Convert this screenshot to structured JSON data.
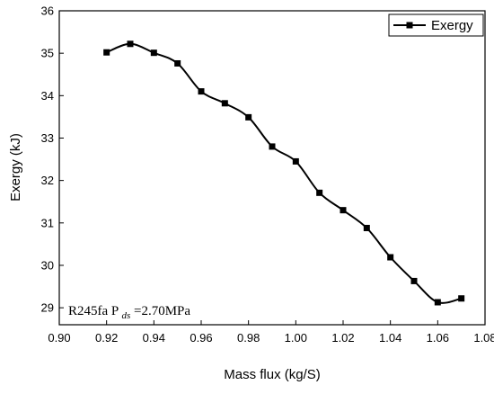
{
  "chart_data": {
    "type": "line",
    "xlabel": "Mass flux (kg/S)",
    "ylabel": "Exergy (kJ)",
    "xlim": [
      0.9,
      1.08
    ],
    "ylim": [
      28.6,
      36.0
    ],
    "xticks": [
      0.9,
      0.92,
      0.94,
      0.96,
      0.98,
      1.0,
      1.02,
      1.04,
      1.06,
      1.08
    ],
    "xtick_labels": [
      "0.90",
      "0.92",
      "0.94",
      "0.96",
      "0.98",
      "1.00",
      "1.02",
      "1.04",
      "1.06",
      "1.08"
    ],
    "yticks": [
      29,
      30,
      31,
      32,
      33,
      34,
      35,
      36
    ],
    "ytick_labels": [
      "29",
      "30",
      "31",
      "32",
      "33",
      "34",
      "35",
      "36"
    ],
    "grid": false,
    "legend_position": "top-right",
    "series": [
      {
        "name": "Exergy",
        "x": [
          0.92,
          0.93,
          0.94,
          0.95,
          0.96,
          0.97,
          0.98,
          0.99,
          1.0,
          1.01,
          1.02,
          1.03,
          1.04,
          1.05,
          1.06,
          1.07
        ],
        "values": [
          35.02,
          35.22,
          35.01,
          34.76,
          34.1,
          33.82,
          33.49,
          32.8,
          32.45,
          31.71,
          31.3,
          30.88,
          30.19,
          29.63,
          29.13,
          29.22
        ],
        "color": "#000000",
        "marker": "square"
      }
    ],
    "annotation": {
      "prefix": "R245fa P",
      "subscript": "ds",
      "suffix": "=2.70MPa",
      "position": "bottom-left"
    }
  }
}
